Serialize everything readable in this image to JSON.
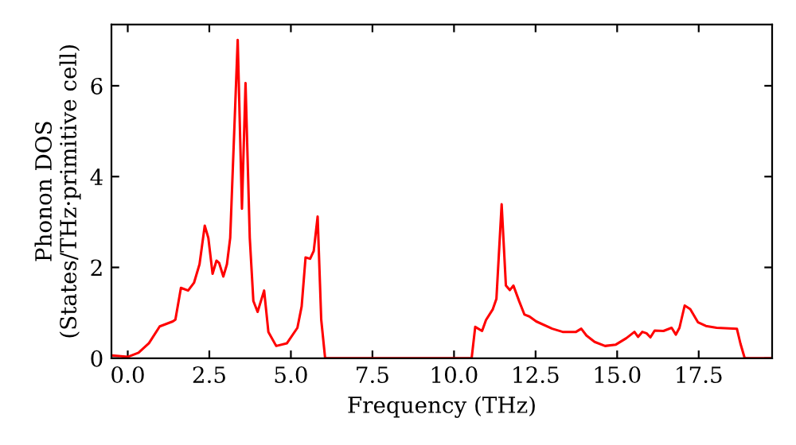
{
  "chart_data": {
    "type": "line",
    "xlabel": "Frequency (THz)",
    "ylabel": "Phonon DOS\n(States/THz·primitive cell)",
    "xlim": [
      -0.5,
      19.75
    ],
    "ylim": [
      0,
      7.35
    ],
    "xticks": [
      {
        "value": 0,
        "label": "0.0"
      },
      {
        "value": 2.5,
        "label": "2.5"
      },
      {
        "value": 5,
        "label": "5.0"
      },
      {
        "value": 7.5,
        "label": "7.5"
      },
      {
        "value": 10,
        "label": "10.0"
      },
      {
        "value": 12.5,
        "label": "12.5"
      },
      {
        "value": 15,
        "label": "15.0"
      },
      {
        "value": 17.5,
        "label": "17.5"
      }
    ],
    "yticks": [
      0,
      2,
      4,
      6
    ],
    "grid": false,
    "legend": false,
    "marker": "none",
    "line_style": "solid",
    "series": [
      {
        "color": "#ff0000",
        "x": [
          -0.49,
          0,
          0.33,
          0.65,
          0.98,
          1.38,
          1.46,
          1.63,
          1.85,
          2.03,
          2.2,
          2.36,
          2.47,
          2.6,
          2.72,
          2.8,
          2.93,
          3.04,
          3.14,
          3.37,
          3.5,
          3.61,
          3.74,
          3.85,
          3.98,
          4.18,
          4.31,
          4.55,
          4.88,
          5.2,
          5.33,
          5.45,
          5.59,
          5.7,
          5.82,
          5.93,
          6.05,
          10.5,
          10.54,
          10.65,
          10.86,
          10.98,
          11.19,
          11.3,
          11.46,
          11.59,
          11.71,
          11.82,
          12.0,
          12.16,
          12.31,
          12.52,
          13.01,
          13.33,
          13.74,
          13.9,
          14.06,
          14.31,
          14.63,
          14.96,
          15.28,
          15.53,
          15.64,
          15.77,
          15.9,
          16.02,
          16.15,
          16.42,
          16.67,
          16.8,
          16.91,
          17.07,
          17.24,
          17.48,
          17.72,
          18.05,
          18.67,
          18.78,
          18.91,
          19.75
        ],
        "values": [
          0.06,
          0.03,
          0.12,
          0.33,
          0.7,
          0.81,
          0.85,
          1.55,
          1.49,
          1.66,
          2.07,
          2.92,
          2.65,
          1.86,
          2.15,
          2.1,
          1.8,
          2.07,
          2.65,
          7.01,
          3.29,
          6.06,
          2.65,
          1.26,
          1.02,
          1.49,
          0.58,
          0.27,
          0.33,
          0.67,
          1.14,
          2.22,
          2.19,
          2.36,
          3.12,
          0.85,
          0.0,
          0.0,
          0.0,
          0.69,
          0.6,
          0.84,
          1.08,
          1.31,
          3.39,
          1.6,
          1.5,
          1.6,
          1.25,
          0.96,
          0.92,
          0.81,
          0.65,
          0.58,
          0.58,
          0.65,
          0.5,
          0.36,
          0.27,
          0.3,
          0.44,
          0.58,
          0.47,
          0.58,
          0.55,
          0.46,
          0.61,
          0.6,
          0.67,
          0.52,
          0.67,
          1.16,
          1.08,
          0.79,
          0.71,
          0.67,
          0.65,
          0.32,
          0.0,
          0.0
        ]
      }
    ]
  }
}
